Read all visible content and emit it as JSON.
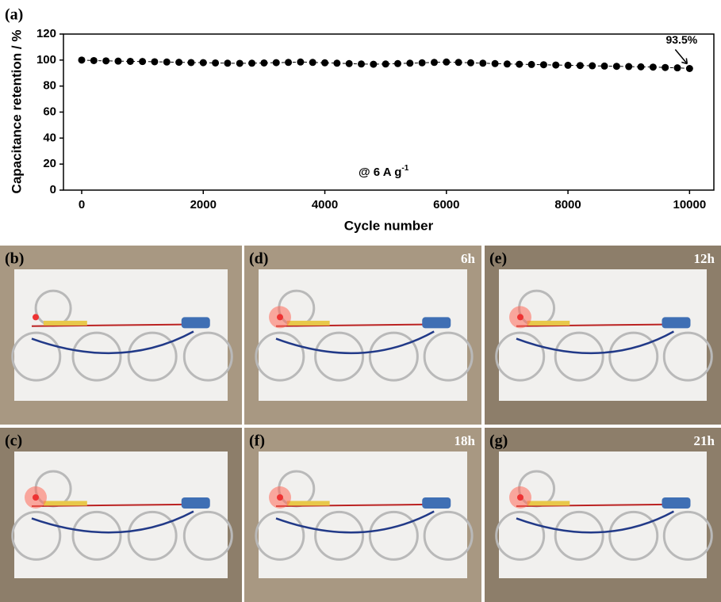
{
  "chart_data": {
    "type": "line",
    "panel_label": "(a)",
    "xlabel": "Cycle number",
    "ylabel": "Capacitance retention / %",
    "annotation": {
      "text": "@ 6 A g",
      "sup": "-1"
    },
    "end_label": "93.5%",
    "xlim": [
      -300,
      10400
    ],
    "ylim": [
      0,
      120
    ],
    "xticks": [
      0,
      2000,
      4000,
      6000,
      8000,
      10000
    ],
    "yticks": [
      0,
      20,
      40,
      60,
      80,
      100,
      120
    ],
    "x": [
      0,
      200,
      400,
      600,
      800,
      1000,
      1200,
      1400,
      1600,
      1800,
      2000,
      2200,
      2400,
      2600,
      2800,
      3000,
      3200,
      3400,
      3600,
      3800,
      4000,
      4200,
      4400,
      4600,
      4800,
      5000,
      5200,
      5400,
      5600,
      5800,
      6000,
      6200,
      6400,
      6600,
      6800,
      7000,
      7200,
      7400,
      7600,
      7800,
      8000,
      8200,
      8400,
      8600,
      8800,
      9000,
      9200,
      9400,
      9600,
      9800,
      10000
    ],
    "series": [
      {
        "color": "#000000",
        "values": [
          100,
          99.6,
          99.4,
          99.2,
          99,
          98.9,
          98.7,
          98.5,
          98.3,
          98.1,
          98,
          97.8,
          97.6,
          97.5,
          97.6,
          97.8,
          98,
          98.2,
          98.5,
          98.2,
          97.9,
          97.6,
          97.3,
          97,
          96.8,
          97,
          97.3,
          97.6,
          97.9,
          98.2,
          98.5,
          98.2,
          97.9,
          97.6,
          97.3,
          97,
          96.8,
          96.6,
          96.4,
          96.2,
          96,
          95.8,
          95.6,
          95.4,
          95.2,
          95,
          94.8,
          94.6,
          94.3,
          94,
          93.5
        ]
      }
    ]
  },
  "photos": [
    {
      "label": "(b)"
    },
    {
      "label": "(c)"
    },
    {
      "label": "(d)",
      "time": "6h"
    },
    {
      "label": "(e)",
      "time": "12h"
    },
    {
      "label": "(f)",
      "time": "18h"
    },
    {
      "label": "(g)",
      "time": "21h"
    }
  ]
}
